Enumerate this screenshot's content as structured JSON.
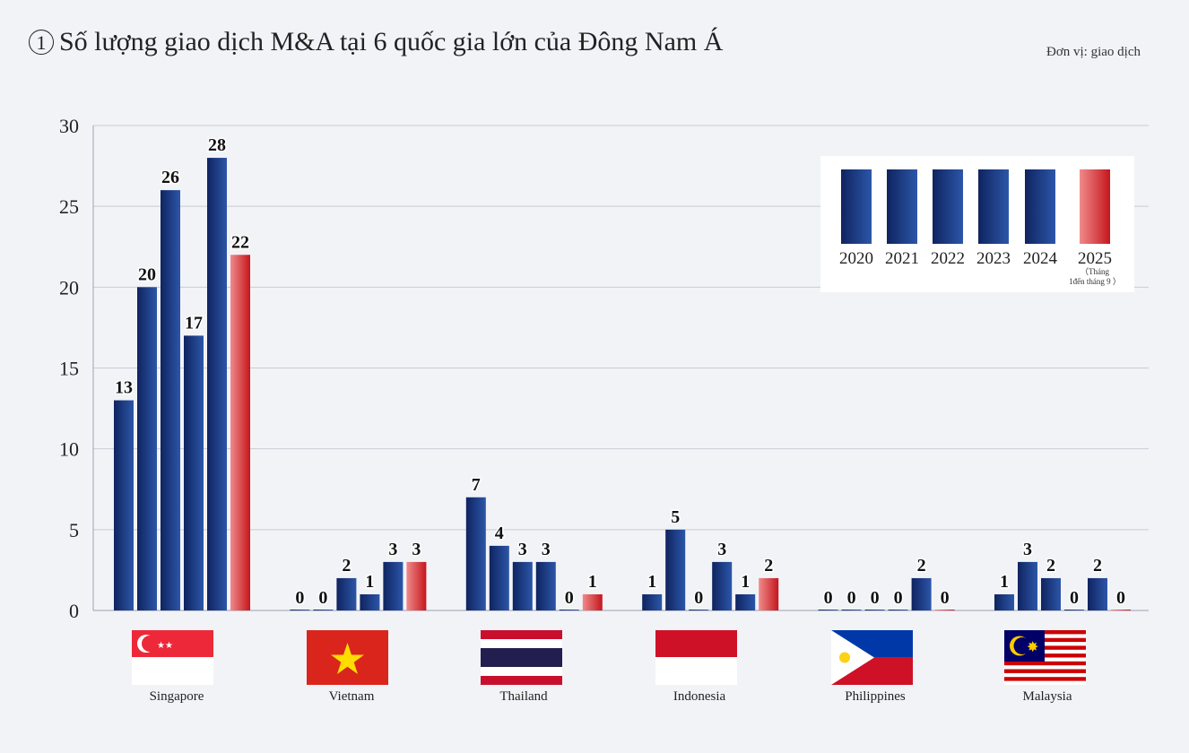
{
  "title_number": "1",
  "title": "Số lượng giao dịch M&A tại 6 quốc gia lớn của Đông Nam Á",
  "unit": "Đơn vị: giao dịch",
  "colors": {
    "blue_dark": "#0f2460",
    "blue_light": "#2c56a8",
    "red_dark": "#c4161c",
    "red_light": "#f08a8a",
    "grid": "#c9ccd6"
  },
  "chart_data": {
    "type": "bar",
    "title": "Số lượng giao dịch M&A tại 6 quốc gia lớn của Đông Nam Á",
    "xlabel": "",
    "ylabel": "Đơn vị: giao dịch",
    "ylim": [
      0,
      30
    ],
    "yticks": [
      0,
      5,
      10,
      15,
      20,
      25,
      30
    ],
    "legend_position": "top-right",
    "categories": [
      "Singapore",
      "Vietnam",
      "Thailand",
      "Indonesia",
      "Philippines",
      "Malaysia"
    ],
    "series": [
      {
        "name": "2020",
        "values": [
          13,
          0,
          7,
          1,
          0,
          1
        ]
      },
      {
        "name": "2021",
        "values": [
          20,
          0,
          4,
          5,
          0,
          3
        ]
      },
      {
        "name": "2022",
        "values": [
          26,
          2,
          3,
          0,
          0,
          2
        ]
      },
      {
        "name": "2023",
        "values": [
          17,
          1,
          3,
          3,
          0,
          0
        ]
      },
      {
        "name": "2024",
        "values": [
          28,
          3,
          0,
          1,
          2,
          2
        ]
      },
      {
        "name": "2025",
        "note_line1": "（Tháng",
        "note_line2": "1đến tháng 9 ）",
        "values": [
          22,
          3,
          1,
          2,
          0,
          0
        ]
      }
    ]
  }
}
